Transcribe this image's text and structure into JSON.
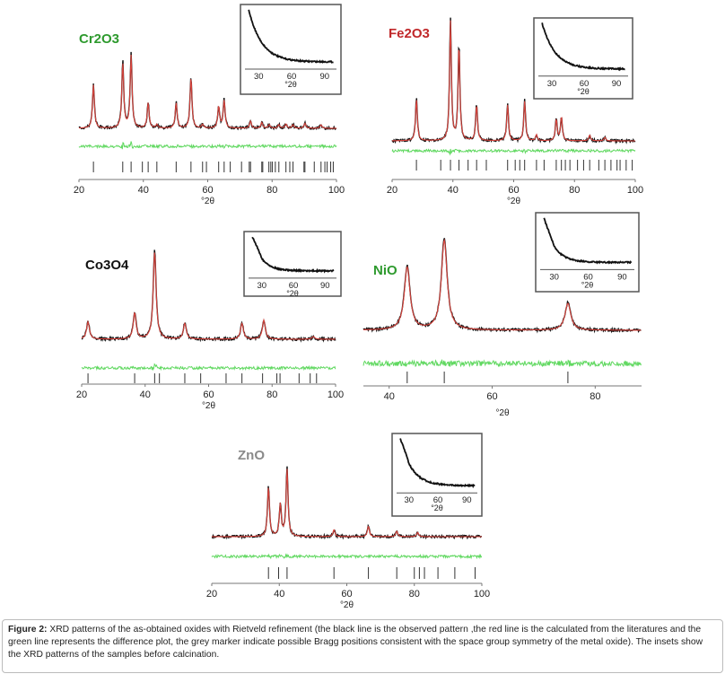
{
  "caption": {
    "label": "Figure 2:",
    "text": "XRD patterns of the as-obtained oxides with Rietveld refinement (the black line is the observed pattern ,the red line is the calculated from the literatures and the green line represents the difference plot, the grey marker indicate possible Bragg positions consistent with the space group symmetry of the metal oxide). The insets show the XRD patterns of the samples before calcination."
  },
  "colors": {
    "observed": "#111111",
    "calculated": "#d8433c",
    "difference": "#5fd85f",
    "bragg": "#333333"
  },
  "chart_data": [
    {
      "type": "line",
      "title": "Cr2O3",
      "title_color": "#2e9a2e",
      "xlabel": "°2θ",
      "xlim": [
        20,
        100
      ],
      "xticks": [
        20,
        40,
        60,
        80,
        100
      ],
      "peaks": [
        [
          24.5,
          0.6
        ],
        [
          33.6,
          0.9
        ],
        [
          36.2,
          1.0
        ],
        [
          41.5,
          0.35
        ],
        [
          44.2,
          0.05
        ],
        [
          50.2,
          0.35
        ],
        [
          54.8,
          0.7
        ],
        [
          58.4,
          0.05
        ],
        [
          63.4,
          0.3
        ],
        [
          65.1,
          0.38
        ],
        [
          73.3,
          0.1
        ],
        [
          76.8,
          0.08
        ],
        [
          79.1,
          0.05
        ],
        [
          82.1,
          0.05
        ],
        [
          84.3,
          0.06
        ],
        [
          86.5,
          0.05
        ],
        [
          90.2,
          0.07
        ],
        [
          95.2,
          0.05
        ]
      ],
      "bragg": [
        24.5,
        33.6,
        36.2,
        39.7,
        41.5,
        44.2,
        50.2,
        54.8,
        58.4,
        59.6,
        63.4,
        65.1,
        67,
        70.5,
        72.9,
        73.3,
        76.8,
        77.1,
        79,
        79.6,
        80.1,
        81,
        82.1,
        84.3,
        85.5,
        86.5,
        89.9,
        90.2,
        93.1,
        95.2,
        96.4,
        97.1,
        98.2,
        99
      ],
      "inset": {
        "xticks": [
          30,
          60,
          90
        ],
        "xlabel": "°2θ"
      }
    },
    {
      "type": "line",
      "title": "Fe2O3",
      "title_color": "#c0282a",
      "xlabel": "°2θ",
      "xlim": [
        20,
        100
      ],
      "xticks": [
        20,
        40,
        60,
        80,
        100
      ],
      "peaks": [
        [
          28,
          0.35
        ],
        [
          39.2,
          1.0
        ],
        [
          42,
          0.8
        ],
        [
          47.8,
          0.3
        ],
        [
          58,
          0.3
        ],
        [
          63.6,
          0.33
        ],
        [
          67.5,
          0.05
        ],
        [
          74,
          0.18
        ],
        [
          75.7,
          0.2
        ],
        [
          85,
          0.05
        ],
        [
          90,
          0.03
        ]
      ],
      "bragg": [
        28,
        36,
        39.2,
        42,
        45,
        47.8,
        51,
        58,
        60.5,
        62,
        63.6,
        67.5,
        70,
        74,
        75.7,
        77,
        78.5,
        81,
        83,
        85,
        88,
        90,
        92,
        94,
        95,
        97,
        99
      ],
      "inset": {
        "xticks": [
          30,
          60,
          90
        ],
        "xlabel": "°2θ"
      }
    },
    {
      "type": "line",
      "title": "Co3O4",
      "title_color": "#111111",
      "xlabel": "°2θ",
      "xlim": [
        20,
        100
      ],
      "xticks": [
        20,
        40,
        60,
        80,
        100
      ],
      "peaks": [
        [
          22,
          0.2
        ],
        [
          36.7,
          0.3
        ],
        [
          43,
          1.0
        ],
        [
          52.5,
          0.18
        ],
        [
          70.5,
          0.18
        ],
        [
          77.4,
          0.22
        ],
        [
          93,
          0.03
        ]
      ],
      "bragg": [
        22,
        36.7,
        43,
        44.5,
        52.5,
        57.5,
        65.5,
        70.5,
        77,
        81.5,
        82.5,
        88.5,
        92,
        94
      ],
      "inset": {
        "xticks": [
          30,
          60,
          90
        ],
        "xlabel": "°2θ"
      }
    },
    {
      "type": "line",
      "title": "NiO",
      "title_color": "#2e9a2e",
      "xlabel": "°2θ",
      "xlim": [
        35,
        89
      ],
      "xticks": [
        40,
        60,
        80
      ],
      "peaks": [
        [
          43.5,
          0.7
        ],
        [
          50.7,
          1.0
        ],
        [
          74.7,
          0.3
        ]
      ],
      "bragg": [
        43.5,
        50.7,
        74.7
      ],
      "inset": {
        "xticks": [
          30,
          60,
          90
        ],
        "xlabel": "°2θ"
      }
    },
    {
      "type": "line",
      "title": "ZnO",
      "title_color": "#8a8a8a",
      "xlabel": "°2θ",
      "xlim": [
        20,
        100
      ],
      "xticks": [
        20,
        40,
        60,
        80,
        100
      ],
      "peaks": [
        [
          36.8,
          0.7
        ],
        [
          40.3,
          0.45
        ],
        [
          42.3,
          0.95
        ],
        [
          56.2,
          0.1
        ],
        [
          66.4,
          0.15
        ],
        [
          74.8,
          0.08
        ],
        [
          81,
          0.06
        ]
      ],
      "bragg": [
        36.8,
        39.8,
        42.3,
        56.2,
        66.4,
        74.8,
        80,
        81.5,
        83,
        87,
        92,
        98
      ],
      "inset": {
        "xticks": [
          30,
          60,
          90
        ],
        "xlabel": "°2θ"
      }
    }
  ]
}
